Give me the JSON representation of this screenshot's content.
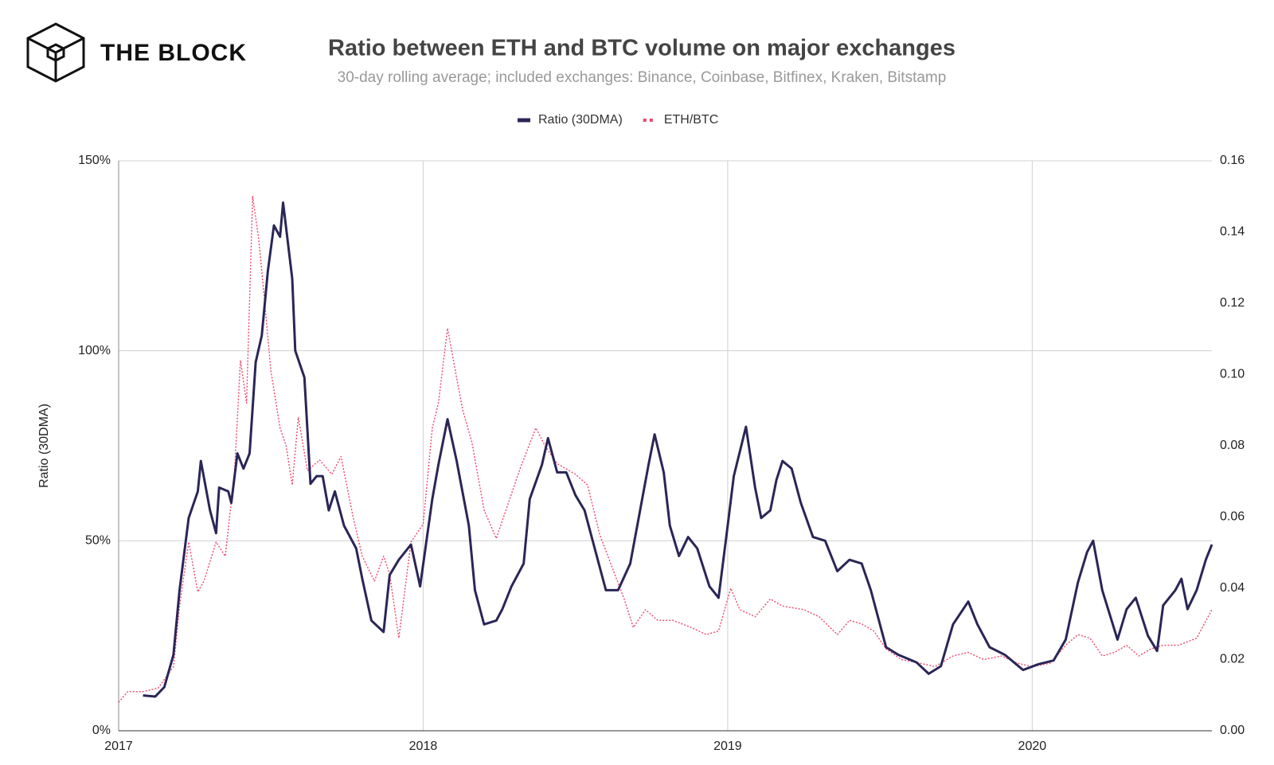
{
  "brand": "THE BLOCK",
  "chart_data": {
    "type": "line",
    "title": "Ratio between ETH and BTC volume on major exchanges",
    "subtitle": "30-day rolling average; included exchanges: Binance, Coinbase, Bitfinex, Kraken, Bitstamp",
    "ylabel": "Ratio (30DMA)",
    "xlim": [
      2017,
      2020.59
    ],
    "xticks": [
      2017,
      2018,
      2019,
      2020
    ],
    "ylim": [
      0,
      150
    ],
    "yticks": [
      {
        "value": 0,
        "label": "0%"
      },
      {
        "value": 50,
        "label": "50%"
      },
      {
        "value": 100,
        "label": "100%"
      },
      {
        "value": 150,
        "label": "150%"
      }
    ],
    "y2lim": [
      0,
      0.16
    ],
    "y2ticks": [
      {
        "value": 0,
        "label": "0.00"
      },
      {
        "value": 0.02,
        "label": "0.02"
      },
      {
        "value": 0.04,
        "label": "0.04"
      },
      {
        "value": 0.06,
        "label": "0.06"
      },
      {
        "value": 0.08,
        "label": "0.08"
      },
      {
        "value": 0.1,
        "label": "0.10"
      },
      {
        "value": 0.12,
        "label": "0.12"
      },
      {
        "value": 0.14,
        "label": "0.14"
      },
      {
        "value": 0.16,
        "label": "0.16"
      }
    ],
    "grid": true,
    "legend": "top",
    "series": [
      {
        "name": "Ratio (30DMA)",
        "color": "#2a2657",
        "style": "solid",
        "axis": "y",
        "x": [
          2017.08,
          2017.12,
          2017.15,
          2017.18,
          2017.2,
          2017.23,
          2017.26,
          2017.27,
          2017.3,
          2017.32,
          2017.33,
          2017.36,
          2017.37,
          2017.39,
          2017.41,
          2017.43,
          2017.45,
          2017.47,
          2017.49,
          2017.51,
          2017.53,
          2017.54,
          2017.57,
          2017.58,
          2017.61,
          2017.63,
          2017.65,
          2017.67,
          2017.69,
          2017.71,
          2017.74,
          2017.78,
          2017.8,
          2017.83,
          2017.87,
          2017.89,
          2017.92,
          2017.96,
          2017.99,
          2018.03,
          2018.05,
          2018.08,
          2018.11,
          2018.15,
          2018.17,
          2018.2,
          2018.24,
          2018.26,
          2018.29,
          2018.33,
          2018.35,
          2018.39,
          2018.41,
          2018.44,
          2018.47,
          2018.5,
          2018.53,
          2018.56,
          2018.6,
          2018.64,
          2018.68,
          2018.71,
          2018.74,
          2018.76,
          2018.79,
          2018.81,
          2018.84,
          2018.87,
          2018.9,
          2018.94,
          2018.97,
          2019.0,
          2019.02,
          2019.06,
          2019.09,
          2019.11,
          2019.14,
          2019.16,
          2019.18,
          2019.21,
          2019.24,
          2019.28,
          2019.32,
          2019.36,
          2019.4,
          2019.44,
          2019.47,
          2019.5,
          2019.52,
          2019.56,
          2019.62,
          2019.66,
          2019.7,
          2019.74,
          2019.79,
          2019.82,
          2019.86,
          2019.91,
          2019.97,
          2020.02,
          2020.07,
          2020.11,
          2020.15,
          2020.18,
          2020.2,
          2020.23,
          2020.28,
          2020.31,
          2020.34,
          2020.38,
          2020.41,
          2020.43,
          2020.47,
          2020.49,
          2020.51,
          2020.54,
          2020.57,
          2020.59
        ],
        "values": [
          9.3,
          9,
          11.5,
          20,
          37,
          56,
          63,
          71,
          58,
          52,
          64,
          63,
          60,
          73,
          69,
          73,
          97,
          104,
          121,
          133,
          130,
          139,
          119,
          100,
          93,
          65,
          67,
          67,
          58,
          63,
          54,
          48,
          40,
          29,
          26,
          41,
          45,
          49,
          38,
          61,
          70,
          82,
          71,
          54,
          37,
          28,
          29,
          32,
          38,
          44,
          61,
          70,
          77,
          68,
          68,
          62,
          58,
          49,
          37,
          37,
          44,
          57,
          70,
          78,
          68,
          54,
          46,
          51,
          48,
          38,
          35,
          54,
          67,
          80,
          64,
          56,
          58,
          66,
          71,
          69,
          60,
          51,
          50,
          42,
          45,
          44,
          37,
          28,
          22,
          20,
          18,
          15,
          17,
          28,
          34,
          28,
          22,
          20,
          16,
          17.5,
          18.5,
          24,
          39,
          47,
          50,
          37,
          24,
          32,
          35,
          25,
          21,
          33,
          37,
          40,
          32,
          37,
          45,
          49
        ]
      },
      {
        "name": "ETH/BTC",
        "color": "#f0456a",
        "style": "dotted",
        "axis": "y2",
        "x": [
          2017.0,
          2017.03,
          2017.08,
          2017.13,
          2017.18,
          2017.2,
          2017.23,
          2017.26,
          2017.28,
          2017.32,
          2017.35,
          2017.38,
          2017.4,
          2017.42,
          2017.44,
          2017.46,
          2017.48,
          2017.5,
          2017.53,
          2017.55,
          2017.57,
          2017.59,
          2017.62,
          2017.66,
          2017.7,
          2017.73,
          2017.77,
          2017.8,
          2017.84,
          2017.87,
          2017.89,
          2017.92,
          2017.96,
          2018.0,
          2018.03,
          2018.05,
          2018.08,
          2018.11,
          2018.13,
          2018.16,
          2018.2,
          2018.24,
          2018.28,
          2018.32,
          2018.37,
          2018.4,
          2018.44,
          2018.5,
          2018.54,
          2018.58,
          2018.62,
          2018.66,
          2018.69,
          2018.73,
          2018.77,
          2018.82,
          2018.88,
          2018.93,
          2018.97,
          2019.01,
          2019.04,
          2019.09,
          2019.14,
          2019.18,
          2019.25,
          2019.3,
          2019.36,
          2019.4,
          2019.44,
          2019.48,
          2019.52,
          2019.57,
          2019.63,
          2019.68,
          2019.74,
          2019.79,
          2019.84,
          2019.9,
          2019.95,
          2020.0,
          2020.06,
          2020.11,
          2020.15,
          2020.19,
          2020.23,
          2020.27,
          2020.31,
          2020.35,
          2020.39,
          2020.43,
          2020.48,
          2020.54,
          2020.59
        ],
        "values": [
          0.008,
          0.011,
          0.011,
          0.012,
          0.018,
          0.035,
          0.053,
          0.039,
          0.042,
          0.053,
          0.049,
          0.072,
          0.104,
          0.092,
          0.15,
          0.138,
          0.12,
          0.101,
          0.085,
          0.08,
          0.069,
          0.088,
          0.073,
          0.076,
          0.072,
          0.077,
          0.06,
          0.049,
          0.042,
          0.049,
          0.044,
          0.026,
          0.053,
          0.058,
          0.085,
          0.092,
          0.113,
          0.099,
          0.09,
          0.081,
          0.062,
          0.054,
          0.064,
          0.074,
          0.085,
          0.08,
          0.075,
          0.072,
          0.069,
          0.055,
          0.046,
          0.037,
          0.029,
          0.034,
          0.031,
          0.031,
          0.029,
          0.027,
          0.028,
          0.04,
          0.034,
          0.032,
          0.037,
          0.035,
          0.034,
          0.032,
          0.027,
          0.031,
          0.03,
          0.028,
          0.023,
          0.02,
          0.019,
          0.018,
          0.021,
          0.022,
          0.02,
          0.021,
          0.019,
          0.018,
          0.019,
          0.024,
          0.027,
          0.026,
          0.021,
          0.022,
          0.024,
          0.021,
          0.023,
          0.024,
          0.024,
          0.026,
          0.034
        ]
      }
    ]
  }
}
